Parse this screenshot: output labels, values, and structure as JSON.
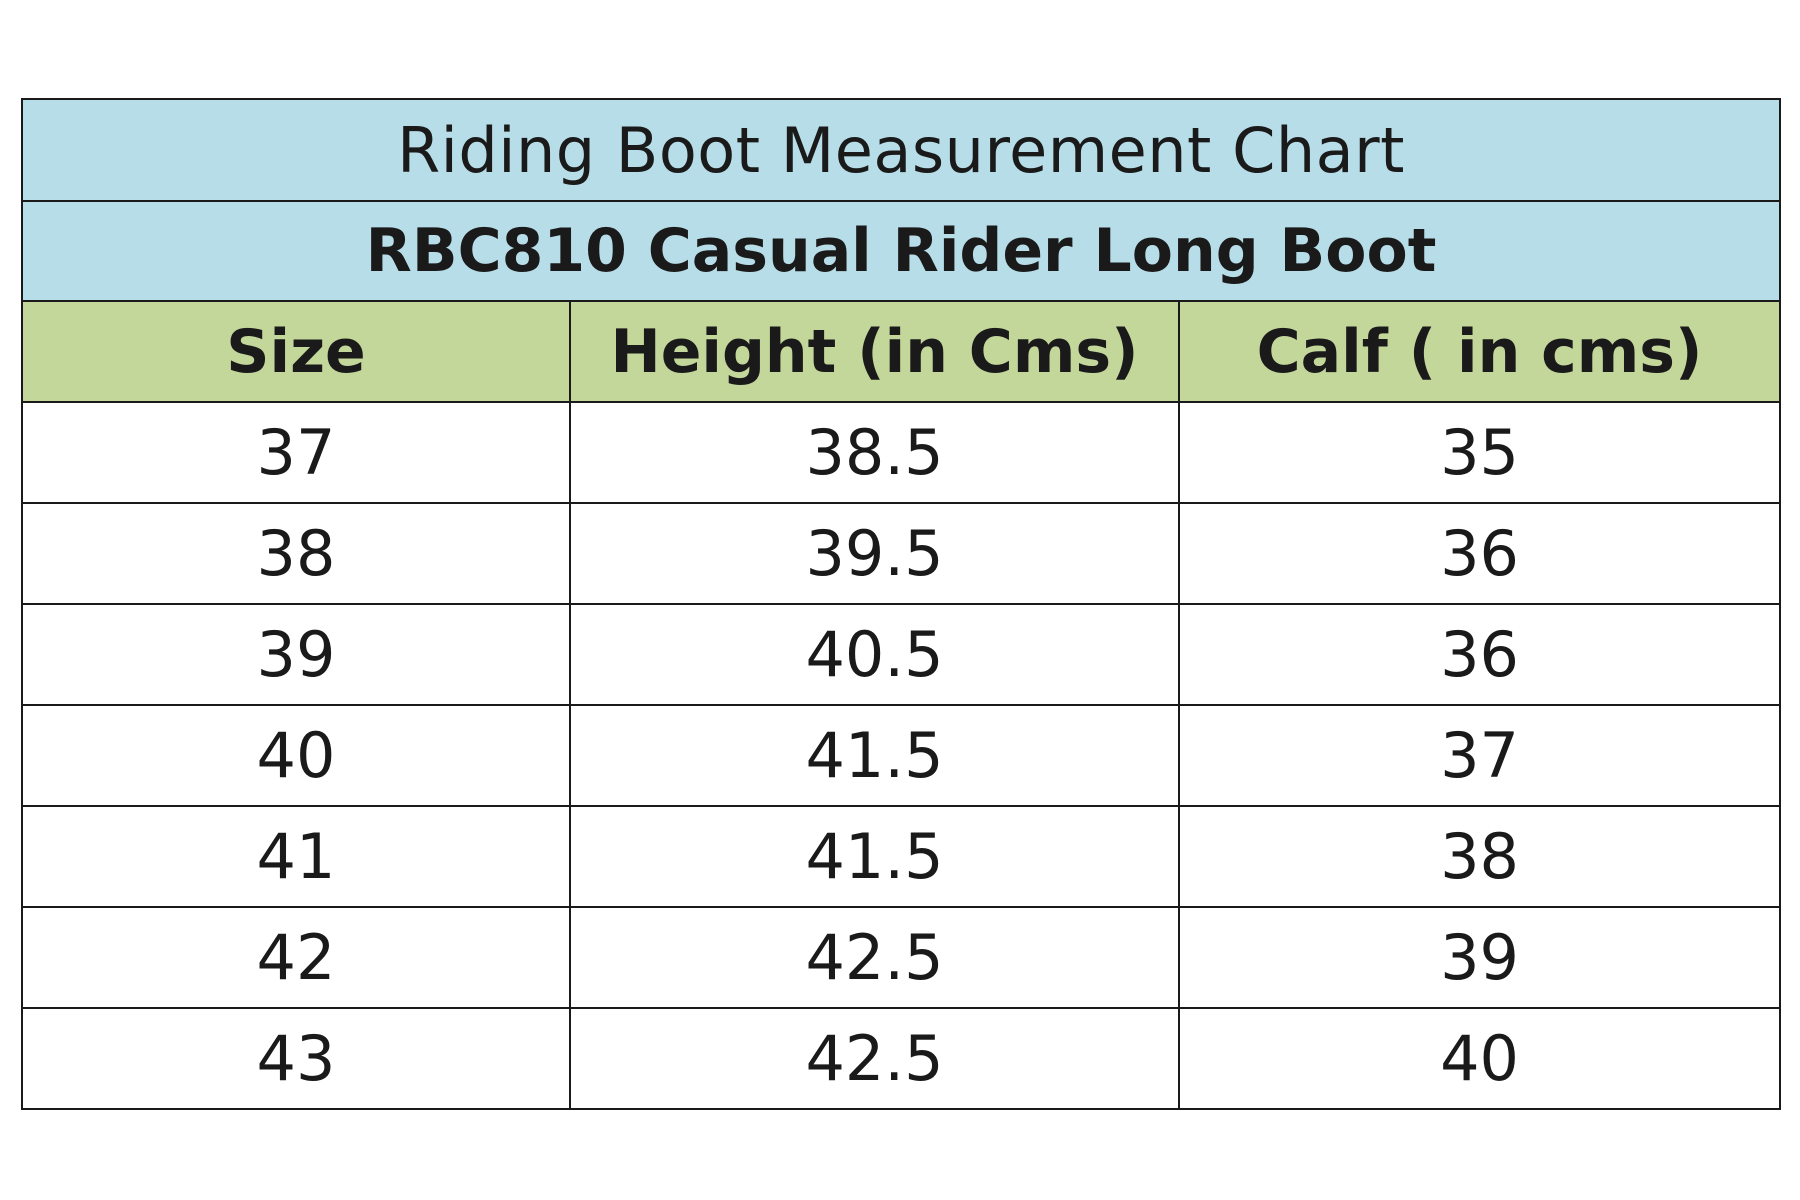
{
  "table": {
    "title": "Riding Boot Measurement Chart",
    "subtitle": "RBC810 Casual Rider Long Boot",
    "columns": [
      "Size",
      "Height (in Cms)",
      "Calf ( in cms)"
    ],
    "rows": [
      [
        "37",
        "38.5",
        "35"
      ],
      [
        "38",
        "39.5",
        "36"
      ],
      [
        "39",
        "40.5",
        "36"
      ],
      [
        "40",
        "41.5",
        "37"
      ],
      [
        "41",
        "41.5",
        "38"
      ],
      [
        "42",
        "42.5",
        "39"
      ],
      [
        "43",
        "42.5",
        "40"
      ]
    ]
  },
  "colors": {
    "title_bg": "#b7dde8",
    "header_bg": "#c4d79b",
    "border": "#1a1a1a",
    "row_bg": "#ffffff"
  }
}
